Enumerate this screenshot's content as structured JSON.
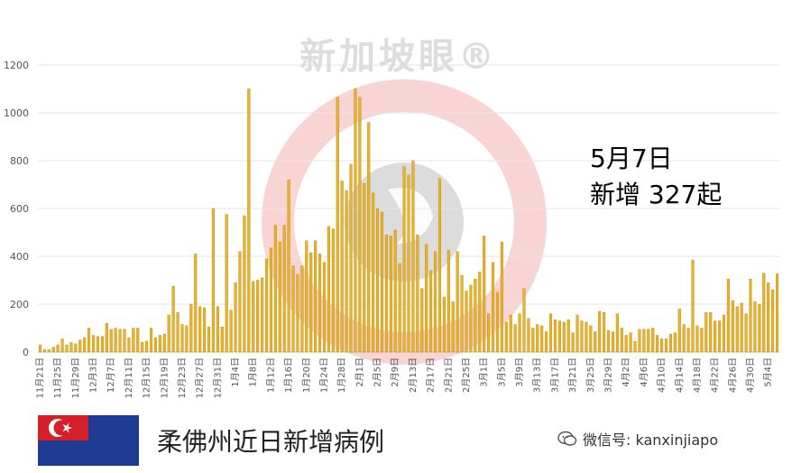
{
  "watermark": "新加坡眼®",
  "annotation": {
    "line1": "5月7日",
    "line2": "新增 327起"
  },
  "caption": "柔佛州近日新增病例",
  "wechat_icon": "wechat-icon",
  "wechat": "微信号: kanxinjiapo",
  "colors": {
    "bar": "#e8b22a",
    "bar_edge": "#b8860b",
    "grid": "#e6e6e6",
    "watermark_ring": "#f7c9c9",
    "watermark_center": "#d0d0d0"
  },
  "chart_data": {
    "type": "bar",
    "title": "",
    "xlabel": "",
    "ylabel": "",
    "ylim": [
      0,
      1200
    ],
    "yticks": [
      0,
      200,
      400,
      600,
      800,
      1000,
      1200
    ],
    "grid": true,
    "start_date": "2020-11-21",
    "tick_labels": [
      "11月21日",
      "11月25日",
      "11月29日",
      "12月3日",
      "12月7日",
      "12月11日",
      "12月15日",
      "12月19日",
      "12月23日",
      "12月27日",
      "12月31日",
      "1月4日",
      "1月8日",
      "1月12日",
      "1月16日",
      "1月20日",
      "1月24日",
      "1月28日",
      "2月1日",
      "2月5日",
      "2月9日",
      "2月13日",
      "2月17日",
      "2月21日",
      "2月25日",
      "3月1日",
      "3月5日",
      "3月9日",
      "3月13日",
      "3月17日",
      "3月21日",
      "3月25日",
      "3月29日",
      "4月2日",
      "4月6日",
      "4月10日",
      "4月14日",
      "4月18日",
      "4月22日",
      "4月26日",
      "4月30日",
      "5月4日"
    ],
    "values": [
      30,
      10,
      10,
      20,
      30,
      55,
      30,
      40,
      35,
      50,
      60,
      100,
      70,
      65,
      65,
      120,
      95,
      100,
      95,
      95,
      60,
      100,
      100,
      40,
      45,
      100,
      60,
      70,
      75,
      155,
      275,
      165,
      115,
      110,
      200,
      410,
      190,
      185,
      105,
      600,
      190,
      105,
      575,
      175,
      290,
      420,
      570,
      1100,
      295,
      300,
      310,
      390,
      435,
      530,
      460,
      530,
      720,
      360,
      325,
      360,
      465,
      415,
      465,
      410,
      375,
      525,
      515,
      1065,
      715,
      675,
      785,
      1100,
      1065,
      705,
      960,
      665,
      600,
      585,
      490,
      485,
      510,
      370,
      775,
      740,
      800,
      490,
      265,
      450,
      340,
      420,
      725,
      230,
      425,
      210,
      420,
      320,
      255,
      280,
      305,
      335,
      485,
      160,
      375,
      250,
      460,
      125,
      155,
      115,
      160,
      265,
      140,
      100,
      115,
      110,
      85,
      160,
      135,
      130,
      125,
      135,
      80,
      155,
      130,
      125,
      110,
      85,
      170,
      165,
      90,
      85,
      160,
      100,
      70,
      80,
      45,
      95,
      95,
      95,
      100,
      70,
      55,
      55,
      75,
      80,
      180,
      115,
      100,
      385,
      110,
      100,
      165,
      165,
      130,
      130,
      155,
      305,
      215,
      190,
      205,
      160,
      305,
      210,
      200,
      330,
      290,
      260,
      327
    ]
  }
}
